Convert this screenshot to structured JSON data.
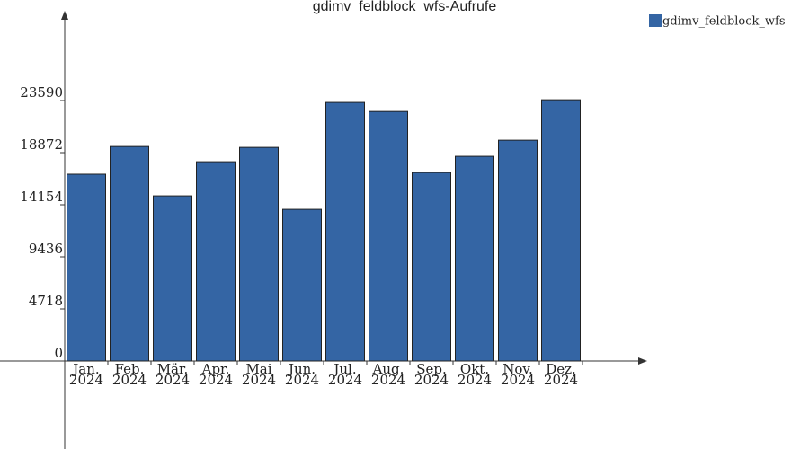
{
  "chart_data": {
    "type": "bar",
    "title": "gdimv_feldblock_wfs-Aufrufe",
    "categories": [
      "Jan. 2024",
      "Feb. 2024",
      "Mär. 2024",
      "Apr. 2024",
      "Mai 2024",
      "Jun. 2024",
      "Jul. 2024",
      "Aug. 2024",
      "Sep. 2024",
      "Okt. 2024",
      "Nov. 2024",
      "Dez. 2024"
    ],
    "series": [
      {
        "name": "gdimv_feldblock_wfs",
        "color": "#3465a4",
        "values": [
          16920,
          19430,
          14960,
          18050,
          19350,
          13740,
          23420,
          22600,
          17070,
          18540,
          20000,
          23660
        ]
      }
    ],
    "ylim": [
      0,
      31480
    ],
    "yticks": [
      0,
      4718,
      9436,
      14154,
      18872,
      23590
    ],
    "legend": "top-right"
  }
}
